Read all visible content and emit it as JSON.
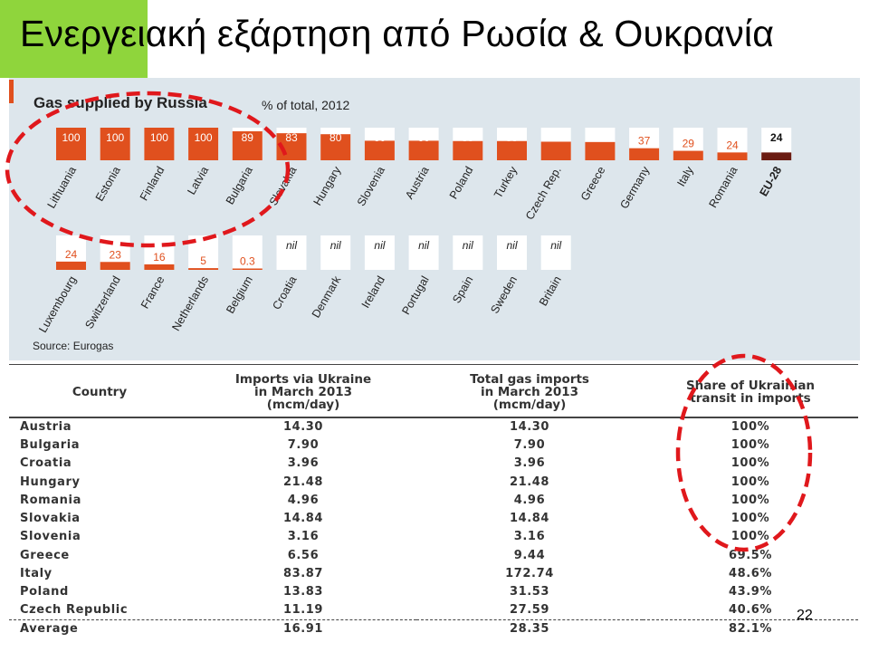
{
  "slide": {
    "title": "Ενεργειακή εξάρτηση από Ρωσία & Ουκρανία",
    "page_number": "22"
  },
  "colors": {
    "title_block": "#8fd53c",
    "chart_background": "#dde6ec",
    "bar": "#e0501e",
    "bar_eu": "#6b1c12",
    "bar_track": "#ffffff",
    "circle": "#e0181c"
  },
  "chart_data": {
    "type": "bar",
    "title": "Gas supplied by Russia",
    "subtitle": "% of total, 2012",
    "source": "Source: Eurogas",
    "ylim": [
      0,
      100
    ],
    "rows": [
      {
        "categories": [
          "Lithuania",
          "Estonia",
          "Finland",
          "Latvia",
          "Bulgaria",
          "Slovakia",
          "Hungary",
          "Slovenia",
          "Austria",
          "Poland",
          "Turkey",
          "Czech Rep.",
          "Greece",
          "Germany",
          "Italy",
          "Romania",
          "EU-28"
        ],
        "values": [
          100,
          100,
          100,
          100,
          89,
          83,
          80,
          60,
          60,
          59,
          59,
          57,
          56,
          37,
          29,
          24,
          24
        ],
        "labels": [
          "100",
          "100",
          "100",
          "100",
          "89",
          "83",
          "80",
          "60",
          "60",
          "59",
          "59",
          "57",
          "56",
          "37",
          "29",
          "24",
          "24"
        ]
      },
      {
        "categories": [
          "Luxembourg",
          "Switzerland",
          "France",
          "Netherlands",
          "Belgium",
          "Croatia",
          "Denmark",
          "Ireland",
          "Portugal",
          "Spain",
          "Sweden",
          "Britain"
        ],
        "values": [
          24,
          23,
          16,
          5,
          0.3,
          0,
          0,
          0,
          0,
          0,
          0,
          0
        ],
        "labels": [
          "24",
          "23",
          "16",
          "5",
          "0.3",
          "nil",
          "nil",
          "nil",
          "nil",
          "nil",
          "nil",
          "nil"
        ]
      }
    ]
  },
  "table": {
    "headers": [
      "Country",
      "Imports via Ukraine\nin March 2013\n(mcm/day)",
      "Total gas imports\nin March 2013\n(mcm/day)",
      "Share of Ukrainian\ntransit in imports"
    ],
    "rows": [
      [
        "Austria",
        "14.30",
        "14.30",
        "100%"
      ],
      [
        "Bulgaria",
        "7.90",
        "7.90",
        "100%"
      ],
      [
        "Croatia",
        "3.96",
        "3.96",
        "100%"
      ],
      [
        "Hungary",
        "21.48",
        "21.48",
        "100%"
      ],
      [
        "Romania",
        "4.96",
        "4.96",
        "100%"
      ],
      [
        "Slovakia",
        "14.84",
        "14.84",
        "100%"
      ],
      [
        "Slovenia",
        "3.16",
        "3.16",
        "100%"
      ],
      [
        "Greece",
        "6.56",
        "9.44",
        "69.5%"
      ],
      [
        "Italy",
        "83.87",
        "172.74",
        "48.6%"
      ],
      [
        "Poland",
        "13.83",
        "31.53",
        "43.9%"
      ],
      [
        "Czech Republic",
        "11.19",
        "27.59",
        "40.6%"
      ]
    ],
    "average": [
      "Average",
      "16.91",
      "28.35",
      "82.1%"
    ]
  }
}
